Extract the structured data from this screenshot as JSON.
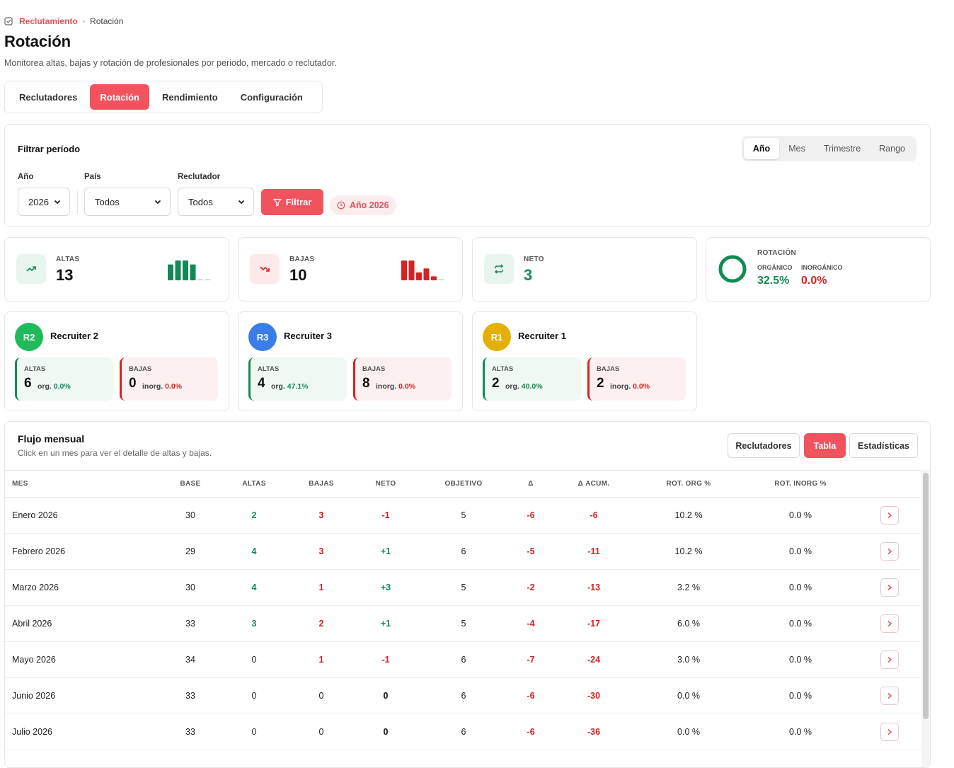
{
  "breadcrumb": {
    "section": "Reclutamiento",
    "current": "Rotación"
  },
  "page": {
    "title": "Rotación",
    "subtitle": "Monitorea altas, bajas y rotación de profesionales por periodo, mercado o reclutador."
  },
  "tabs": [
    {
      "label": "Reclutadores",
      "active": false
    },
    {
      "label": "Rotación",
      "active": true
    },
    {
      "label": "Rendimiento",
      "active": false
    },
    {
      "label": "Configuración",
      "active": false
    }
  ],
  "filter": {
    "title": "Filtrar período",
    "period_options": [
      "Año",
      "Mes",
      "Trimestre",
      "Rango"
    ],
    "period_selected": "Año",
    "year_label": "Año",
    "year_value": "2026",
    "country_label": "País",
    "country_value": "Todos",
    "recruiter_label": "Reclutador",
    "recruiter_value": "Todos",
    "button": "Filtrar",
    "chip": "Año 2026"
  },
  "kpis": {
    "altas": {
      "label": "ALTAS",
      "value": "13",
      "spark": [
        4,
        5,
        5,
        4,
        0.3,
        0.3
      ]
    },
    "bajas": {
      "label": "BAJAS",
      "value": "10",
      "spark": [
        5,
        5,
        2,
        3,
        1,
        0.3
      ]
    },
    "neto": {
      "label": "NETO",
      "value": "3"
    },
    "rotacion": {
      "label": "ROTACIÓN",
      "organic_label": "ORGÁNICO",
      "organic_value": "32.5%",
      "inorganic_label": "INORGÁNICO",
      "inorganic_value": "0.0%"
    }
  },
  "colors": {
    "accent": "#f0535e",
    "green": "#128a55",
    "red": "#d42323"
  },
  "recruiters": [
    {
      "initials": "R2",
      "name": "Recruiter 2",
      "color": "#1fba5a",
      "altas_label": "ALTAS",
      "altas": "6",
      "altas_prefix": "org.",
      "altas_pct": "0.0%",
      "bajas_label": "BAJAS",
      "bajas": "0",
      "bajas_prefix": "inorg.",
      "bajas_pct": "0.0%"
    },
    {
      "initials": "R3",
      "name": "Recruiter 3",
      "color": "#3b7de8",
      "altas_label": "ALTAS",
      "altas": "4",
      "altas_prefix": "org.",
      "altas_pct": "47.1%",
      "bajas_label": "BAJAS",
      "bajas": "8",
      "bajas_prefix": "inorg.",
      "bajas_pct": "0.0%"
    },
    {
      "initials": "R1",
      "name": "Recruiter 1",
      "color": "#e4b007",
      "altas_label": "ALTAS",
      "altas": "2",
      "altas_prefix": "org.",
      "altas_pct": "40.0%",
      "bajas_label": "BAJAS",
      "bajas": "2",
      "bajas_prefix": "inorg.",
      "bajas_pct": "0.0%"
    }
  ],
  "flow": {
    "title": "Flujo mensual",
    "subtitle": "Click en un mes para ver el detalle de altas y bajas.",
    "views": [
      {
        "label": "Reclutadores",
        "active": false
      },
      {
        "label": "Tabla",
        "active": true
      },
      {
        "label": "Estadísticas",
        "active": false
      }
    ],
    "columns": [
      "MES",
      "BASE",
      "ALTAS",
      "BAJAS",
      "NETO",
      "OBJETIVO",
      "Δ",
      "Δ ACUM.",
      "ROT. ORG %",
      "ROT. INORG %"
    ],
    "rows": [
      {
        "mes": "Enero 2026",
        "base": "30",
        "altas": "2",
        "bajas": "3",
        "neto": "-1",
        "objetivo": "5",
        "delta": "-6",
        "acum": "-6",
        "org": "10.2 %",
        "inorg": "0.0 %"
      },
      {
        "mes": "Febrero 2026",
        "base": "29",
        "altas": "4",
        "bajas": "3",
        "neto": "+1",
        "objetivo": "6",
        "delta": "-5",
        "acum": "-11",
        "org": "10.2 %",
        "inorg": "0.0 %"
      },
      {
        "mes": "Marzo 2026",
        "base": "30",
        "altas": "4",
        "bajas": "1",
        "neto": "+3",
        "objetivo": "5",
        "delta": "-2",
        "acum": "-13",
        "org": "3.2 %",
        "inorg": "0.0 %"
      },
      {
        "mes": "Abril 2026",
        "base": "33",
        "altas": "3",
        "bajas": "2",
        "neto": "+1",
        "objetivo": "5",
        "delta": "-4",
        "acum": "-17",
        "org": "6.0 %",
        "inorg": "0.0 %"
      },
      {
        "mes": "Mayo 2026",
        "base": "34",
        "altas": "0",
        "bajas": "1",
        "neto": "-1",
        "objetivo": "6",
        "delta": "-7",
        "acum": "-24",
        "org": "3.0 %",
        "inorg": "0.0 %"
      },
      {
        "mes": "Junio 2026",
        "base": "33",
        "altas": "0",
        "bajas": "0",
        "neto": "0",
        "objetivo": "6",
        "delta": "-6",
        "acum": "-30",
        "org": "0.0 %",
        "inorg": "0.0 %"
      },
      {
        "mes": "Julio 2026",
        "base": "33",
        "altas": "0",
        "bajas": "0",
        "neto": "0",
        "objetivo": "6",
        "delta": "-6",
        "acum": "-36",
        "org": "0.0 %",
        "inorg": "0.0 %"
      }
    ]
  }
}
